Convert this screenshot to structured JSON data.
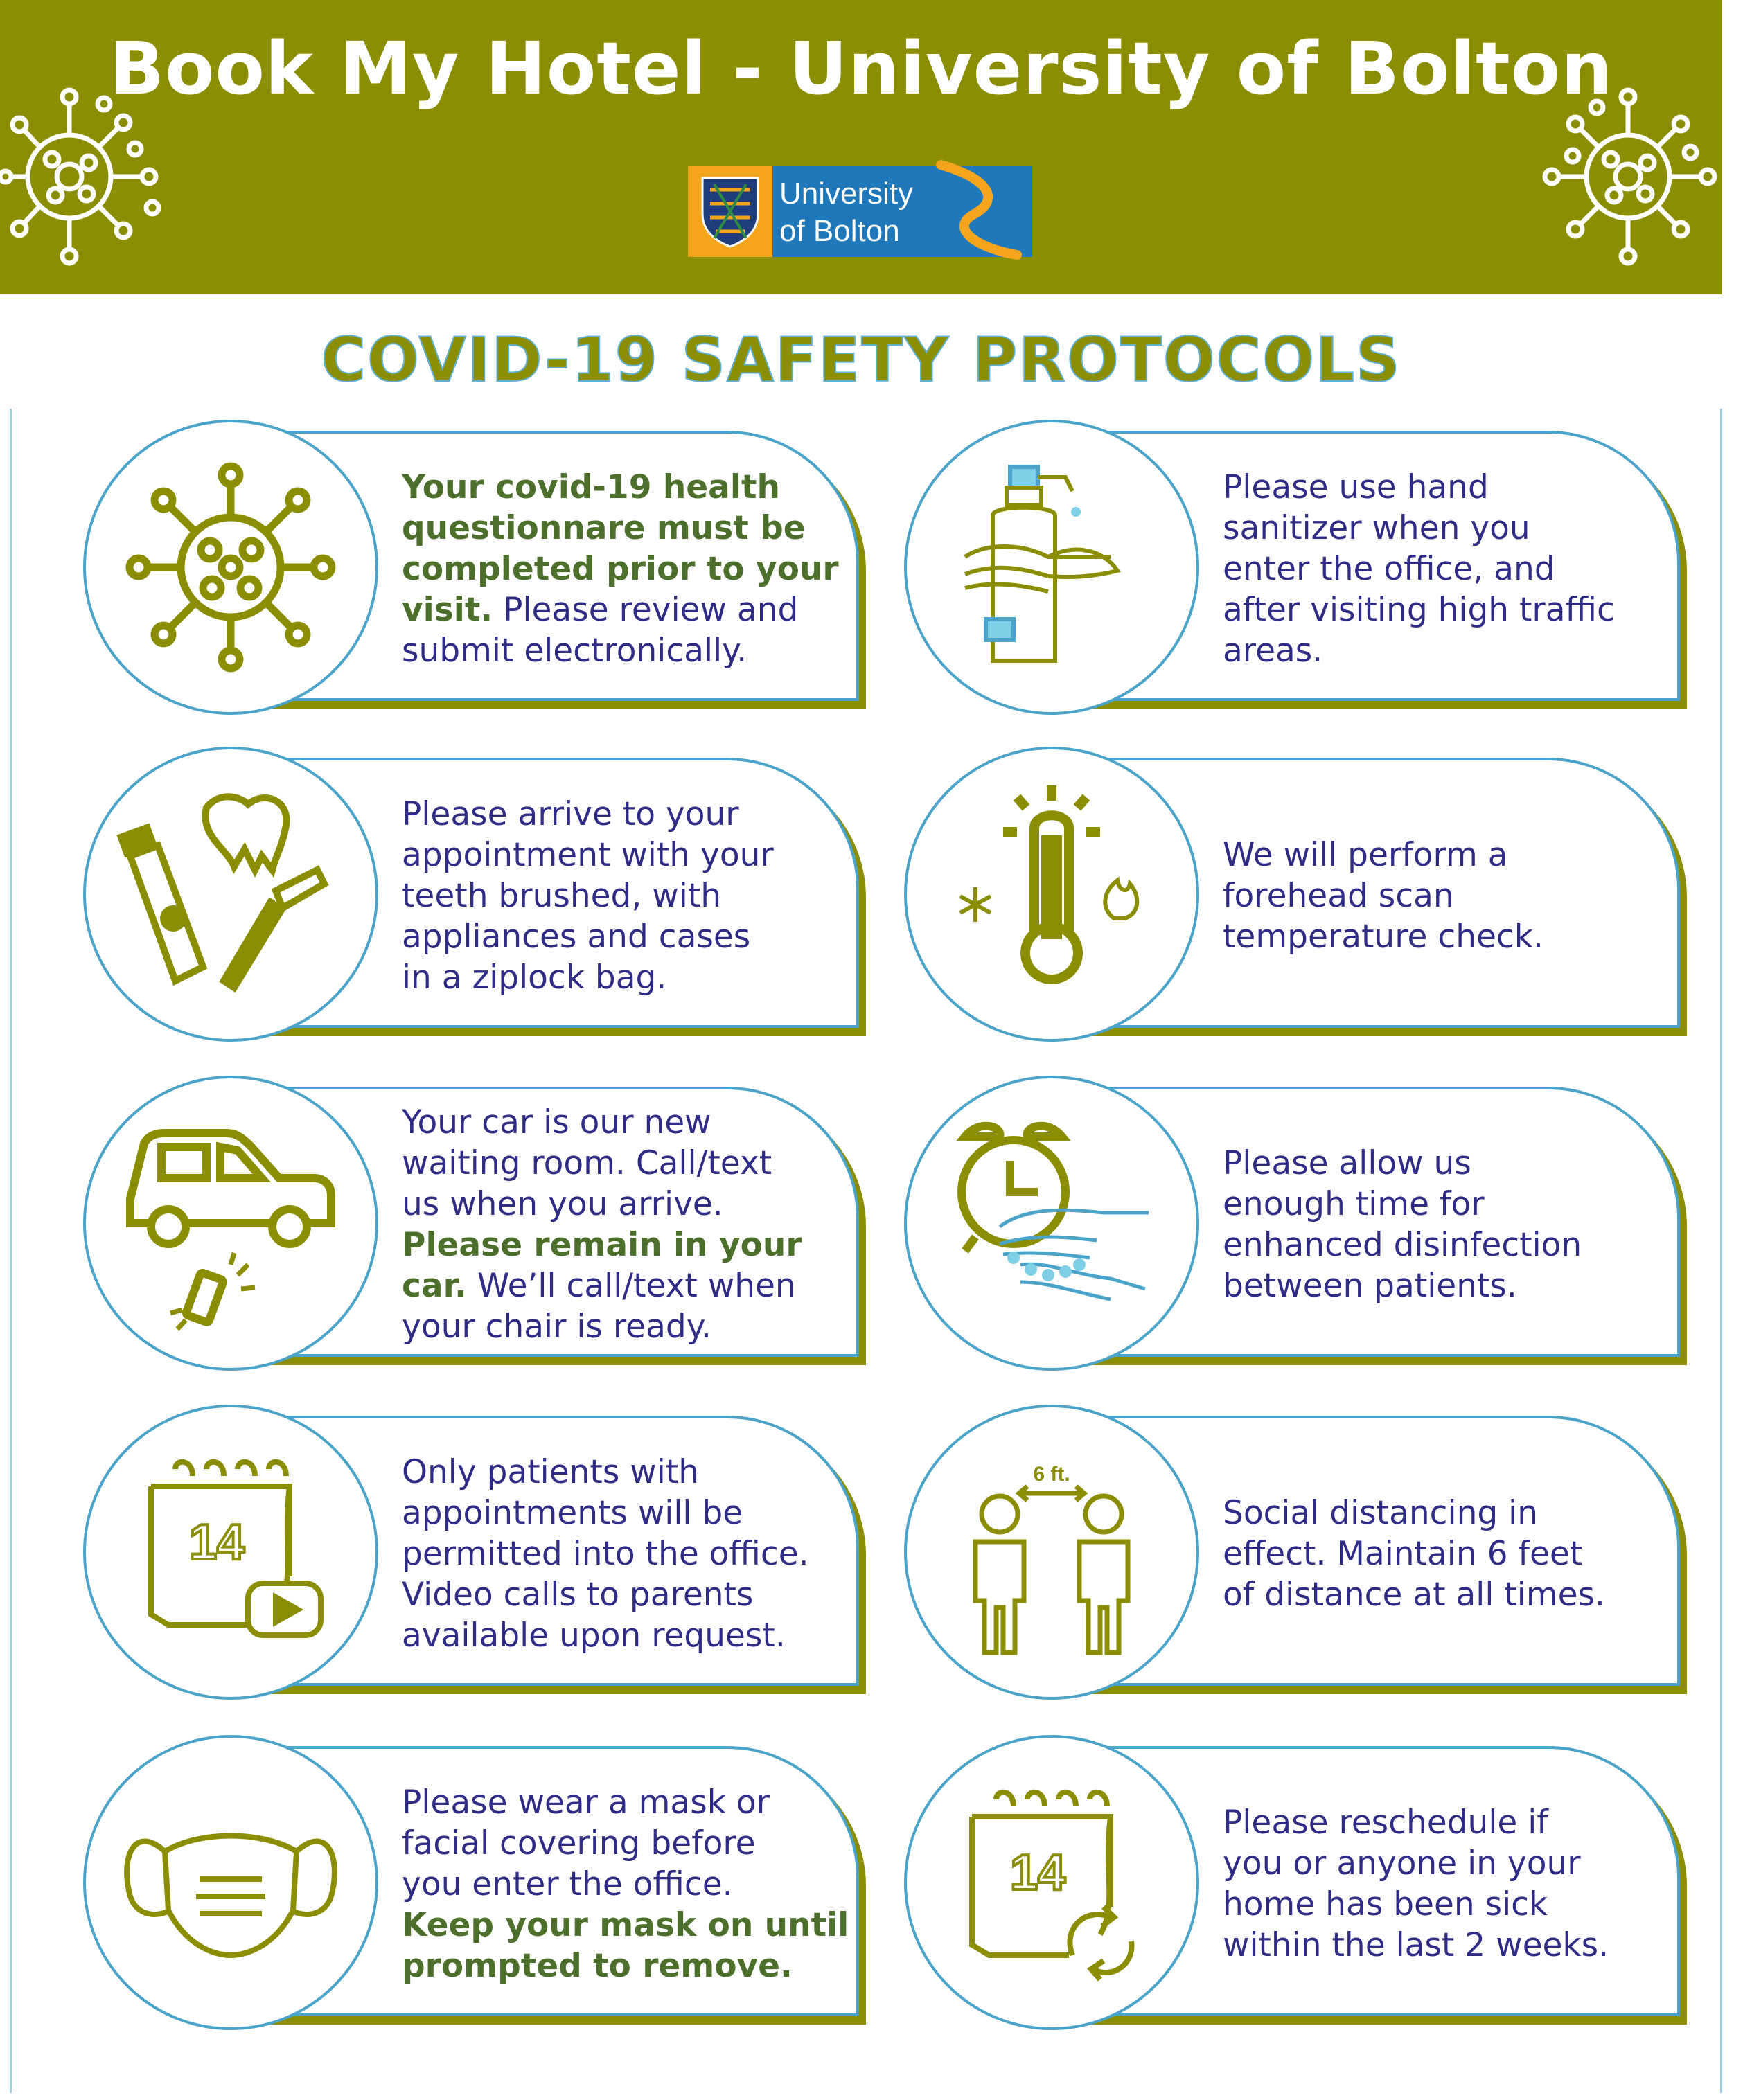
{
  "header": {
    "title": "Book My Hotel - University of Bolton",
    "background_color": "#8b8e02",
    "logo": {
      "line1": "University",
      "line2": "of Bolton",
      "color": "#1f78ba",
      "accent": "#f5a51c"
    }
  },
  "main_title": "COVID-19 SAFETY PROTOCOLS",
  "colors": {
    "olive": "#8b8e02",
    "blue_outline": "#4aa3c9",
    "text_navy": "#2e2c85",
    "highlight_green": "#4d6f2c"
  },
  "cards": [
    {
      "icon": "virus-icon",
      "lines": [
        {
          "parts": [
            {
              "t": "Your covid-19 health",
              "hl": true
            }
          ]
        },
        {
          "parts": [
            {
              "t": "questionnare must be",
              "hl": true
            }
          ]
        },
        {
          "parts": [
            {
              "t": "completed prior to your",
              "hl": true
            }
          ]
        },
        {
          "parts": [
            {
              "t": "visit.",
              "hl": true
            },
            {
              "t": " Please review and",
              "hl": false
            }
          ]
        },
        {
          "parts": [
            {
              "t": "submit electronically.",
              "hl": false
            }
          ]
        }
      ]
    },
    {
      "icon": "hand-sanitizer-icon",
      "lines": [
        {
          "parts": [
            {
              "t": "Please use hand",
              "hl": false
            }
          ]
        },
        {
          "parts": [
            {
              "t": "sanitizer when you",
              "hl": false
            }
          ]
        },
        {
          "parts": [
            {
              "t": "enter the office, and",
              "hl": false
            }
          ]
        },
        {
          "parts": [
            {
              "t": "after visiting high traffic",
              "hl": false
            }
          ]
        },
        {
          "parts": [
            {
              "t": "areas.",
              "hl": false
            }
          ]
        }
      ]
    },
    {
      "icon": "toothpaste-toothbrush-icon",
      "lines": [
        {
          "parts": [
            {
              "t": "Please arrive to your",
              "hl": false
            }
          ]
        },
        {
          "parts": [
            {
              "t": "appointment with your",
              "hl": false
            }
          ]
        },
        {
          "parts": [
            {
              "t": "teeth brushed, with",
              "hl": false
            }
          ]
        },
        {
          "parts": [
            {
              "t": "appliances and cases",
              "hl": false
            }
          ]
        },
        {
          "parts": [
            {
              "t": "in a ziplock bag.",
              "hl": false
            }
          ]
        }
      ]
    },
    {
      "icon": "thermometer-icon",
      "lines": [
        {
          "parts": [
            {
              "t": "We will perform a",
              "hl": false
            }
          ]
        },
        {
          "parts": [
            {
              "t": "forehead scan",
              "hl": false
            }
          ]
        },
        {
          "parts": [
            {
              "t": "temperature check.",
              "hl": false
            }
          ]
        }
      ]
    },
    {
      "icon": "car-phone-icon",
      "lines": [
        {
          "parts": [
            {
              "t": "Your car is our new",
              "hl": false
            }
          ]
        },
        {
          "parts": [
            {
              "t": "waiting room. Call/text",
              "hl": false
            }
          ]
        },
        {
          "parts": [
            {
              "t": "us when you arrive.",
              "hl": false
            }
          ]
        },
        {
          "parts": [
            {
              "t": "Please remain in your",
              "hl": true
            }
          ]
        },
        {
          "parts": [
            {
              "t": "car.",
              "hl": true
            },
            {
              "t": " We’ll call/text when",
              "hl": false
            }
          ]
        },
        {
          "parts": [
            {
              "t": "your chair is ready.",
              "hl": false
            }
          ]
        }
      ]
    },
    {
      "icon": "alarm-clock-handwash-icon",
      "lines": [
        {
          "parts": [
            {
              "t": "Please allow us",
              "hl": false
            }
          ]
        },
        {
          "parts": [
            {
              "t": "enough time for",
              "hl": false
            }
          ]
        },
        {
          "parts": [
            {
              "t": "enhanced disinfection",
              "hl": false
            }
          ]
        },
        {
          "parts": [
            {
              "t": "between patients.",
              "hl": false
            }
          ]
        }
      ]
    },
    {
      "icon": "calendar-video-icon",
      "calendar_number": "14",
      "lines": [
        {
          "parts": [
            {
              "t": "Only patients with",
              "hl": false
            }
          ]
        },
        {
          "parts": [
            {
              "t": "appointments will be",
              "hl": false
            }
          ]
        },
        {
          "parts": [
            {
              "t": "permitted into the office.",
              "hl": false
            }
          ]
        },
        {
          "parts": [
            {
              "t": "Video calls to parents",
              "hl": false
            }
          ]
        },
        {
          "parts": [
            {
              "t": "available upon request.",
              "hl": false
            }
          ]
        }
      ]
    },
    {
      "icon": "social-distancing-icon",
      "distance_label": "6 ft.",
      "lines": [
        {
          "parts": [
            {
              "t": "Social distancing in",
              "hl": false
            }
          ]
        },
        {
          "parts": [
            {
              "t": "effect. Maintain 6 feet",
              "hl": false
            }
          ]
        },
        {
          "parts": [
            {
              "t": "of distance at all times.",
              "hl": false
            }
          ]
        }
      ]
    },
    {
      "icon": "face-mask-icon",
      "lines": [
        {
          "parts": [
            {
              "t": "Please wear a mask or",
              "hl": false
            }
          ]
        },
        {
          "parts": [
            {
              "t": "facial covering before",
              "hl": false
            }
          ]
        },
        {
          "parts": [
            {
              "t": "you enter the office.",
              "hl": false
            }
          ]
        },
        {
          "parts": [
            {
              "t": "Keep your mask on until",
              "hl": true
            }
          ]
        },
        {
          "parts": [
            {
              "t": "prompted to remove.",
              "hl": true
            }
          ]
        }
      ]
    },
    {
      "icon": "calendar-reschedule-icon",
      "calendar_number": "14",
      "lines": [
        {
          "parts": [
            {
              "t": "Please reschedule if",
              "hl": false
            }
          ]
        },
        {
          "parts": [
            {
              "t": "you or anyone in your",
              "hl": false
            }
          ]
        },
        {
          "parts": [
            {
              "t": "home has been sick",
              "hl": false
            }
          ]
        },
        {
          "parts": [
            {
              "t": "within the last 2 weeks.",
              "hl": false
            }
          ]
        }
      ]
    }
  ]
}
